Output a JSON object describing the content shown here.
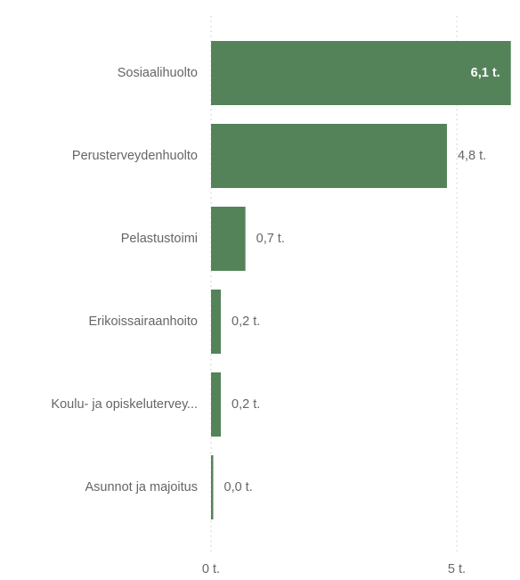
{
  "chart_data": {
    "type": "bar",
    "orientation": "horizontal",
    "categories": [
      "Sosiaalihuolto",
      "Perusterveydenhuolto",
      "Pelastustoimi",
      "Erikoissairaanhoito",
      "Koulu- ja opiskeluterveу...",
      "Asunnot ja majoitus"
    ],
    "values": [
      6.1,
      4.8,
      0.7,
      0.2,
      0.2,
      0.0
    ],
    "data_labels": [
      "6,1 t.",
      "4,8 t.",
      "0,7 t.",
      "0,2 t.",
      "0,2 t.",
      "0,0 t."
    ],
    "x_ticks": [
      {
        "value": 0,
        "label": "0 t."
      },
      {
        "value": 5,
        "label": "5 t."
      }
    ],
    "xlim": [
      0,
      6.1
    ],
    "grid": "vertical-dotted",
    "legend": "none",
    "title": "",
    "xlabel": "",
    "ylabel": ""
  },
  "colors": {
    "bar": "#54835a",
    "label_inside": "#ffffff",
    "label_outside": "#666666"
  }
}
